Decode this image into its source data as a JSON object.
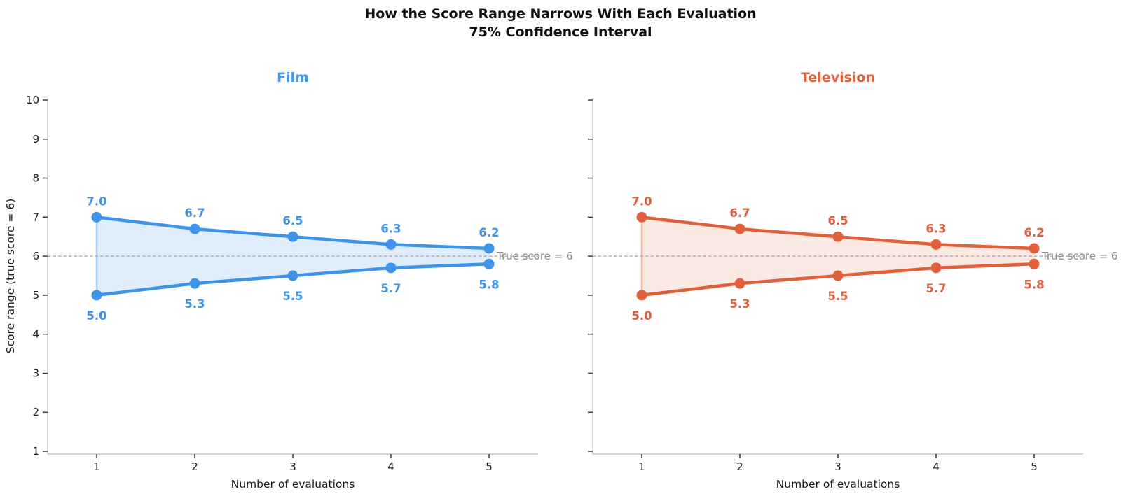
{
  "header": {
    "suptitle_line1": "How the Score Range Narrows With Each Evaluation",
    "suptitle_line2": "75% Confidence Interval"
  },
  "styles": {
    "annotation_color": "#8a8a8a",
    "dashed_line_color": "#a3a3a3",
    "axis_spine_color": "#c8c8c8",
    "tick_mark_color": "#2e2e2e",
    "text_color": "#1a1a1a",
    "title_color": "#0f0f0f"
  },
  "chart_data": [
    {
      "type": "area",
      "title": "Film",
      "x": [
        1,
        2,
        3,
        4,
        5
      ],
      "xticks": [
        "1",
        "2",
        "3",
        "4",
        "5"
      ],
      "yticks": [
        "1",
        "2",
        "3",
        "4",
        "5",
        "6",
        "7",
        "8",
        "9",
        "10"
      ],
      "xlim": [
        0.5,
        5.5
      ],
      "ylim": [
        1,
        10
      ],
      "grid": false,
      "legend": "none",
      "series": [
        {
          "name": "upper_bound",
          "values": [
            7.0,
            6.7,
            6.5,
            6.3,
            6.2
          ],
          "labels": [
            "7.0",
            "6.7",
            "6.5",
            "6.3",
            "6.2"
          ]
        },
        {
          "name": "lower_bound",
          "values": [
            5.0,
            5.3,
            5.5,
            5.7,
            5.8
          ],
          "labels": [
            "5.0",
            "5.3",
            "5.5",
            "5.7",
            "5.8"
          ]
        }
      ],
      "xlabel": "Number of evaluations",
      "ylabel": "Score range (true score = 6)",
      "show_ytick_labels": true,
      "annotation": {
        "text": "True score = 6",
        "y": 6
      },
      "true_score": 6,
      "colors": {
        "line": "#3D94E8",
        "fill": "rgba(61,148,232,0.16)",
        "band_edge": "rgba(61,148,232,0.42)",
        "title": "#3B97F0"
      }
    },
    {
      "type": "area",
      "title": "Television",
      "x": [
        1,
        2,
        3,
        4,
        5
      ],
      "xticks": [
        "1",
        "2",
        "3",
        "4",
        "5"
      ],
      "yticks": [
        "1",
        "2",
        "3",
        "4",
        "5",
        "6",
        "7",
        "8",
        "9",
        "10"
      ],
      "xlim": [
        0.5,
        5.5
      ],
      "ylim": [
        1,
        10
      ],
      "grid": false,
      "legend": "none",
      "series": [
        {
          "name": "upper_bound",
          "values": [
            7.0,
            6.7,
            6.5,
            6.3,
            6.2
          ],
          "labels": [
            "7.0",
            "6.7",
            "6.5",
            "6.3",
            "6.2"
          ]
        },
        {
          "name": "lower_bound",
          "values": [
            5.0,
            5.3,
            5.5,
            5.7,
            5.8
          ],
          "labels": [
            "5.0",
            "5.3",
            "5.5",
            "5.7",
            "5.8"
          ]
        }
      ],
      "xlabel": "Number of evaluations",
      "ylabel": "",
      "show_ytick_labels": false,
      "annotation": {
        "text": "True score = 6",
        "y": 6
      },
      "true_score": 6,
      "colors": {
        "line": "#E0603C",
        "fill": "rgba(224,96,60,0.14)",
        "band_edge": "rgba(224,96,60,0.42)",
        "title": "#E2613E"
      }
    }
  ]
}
